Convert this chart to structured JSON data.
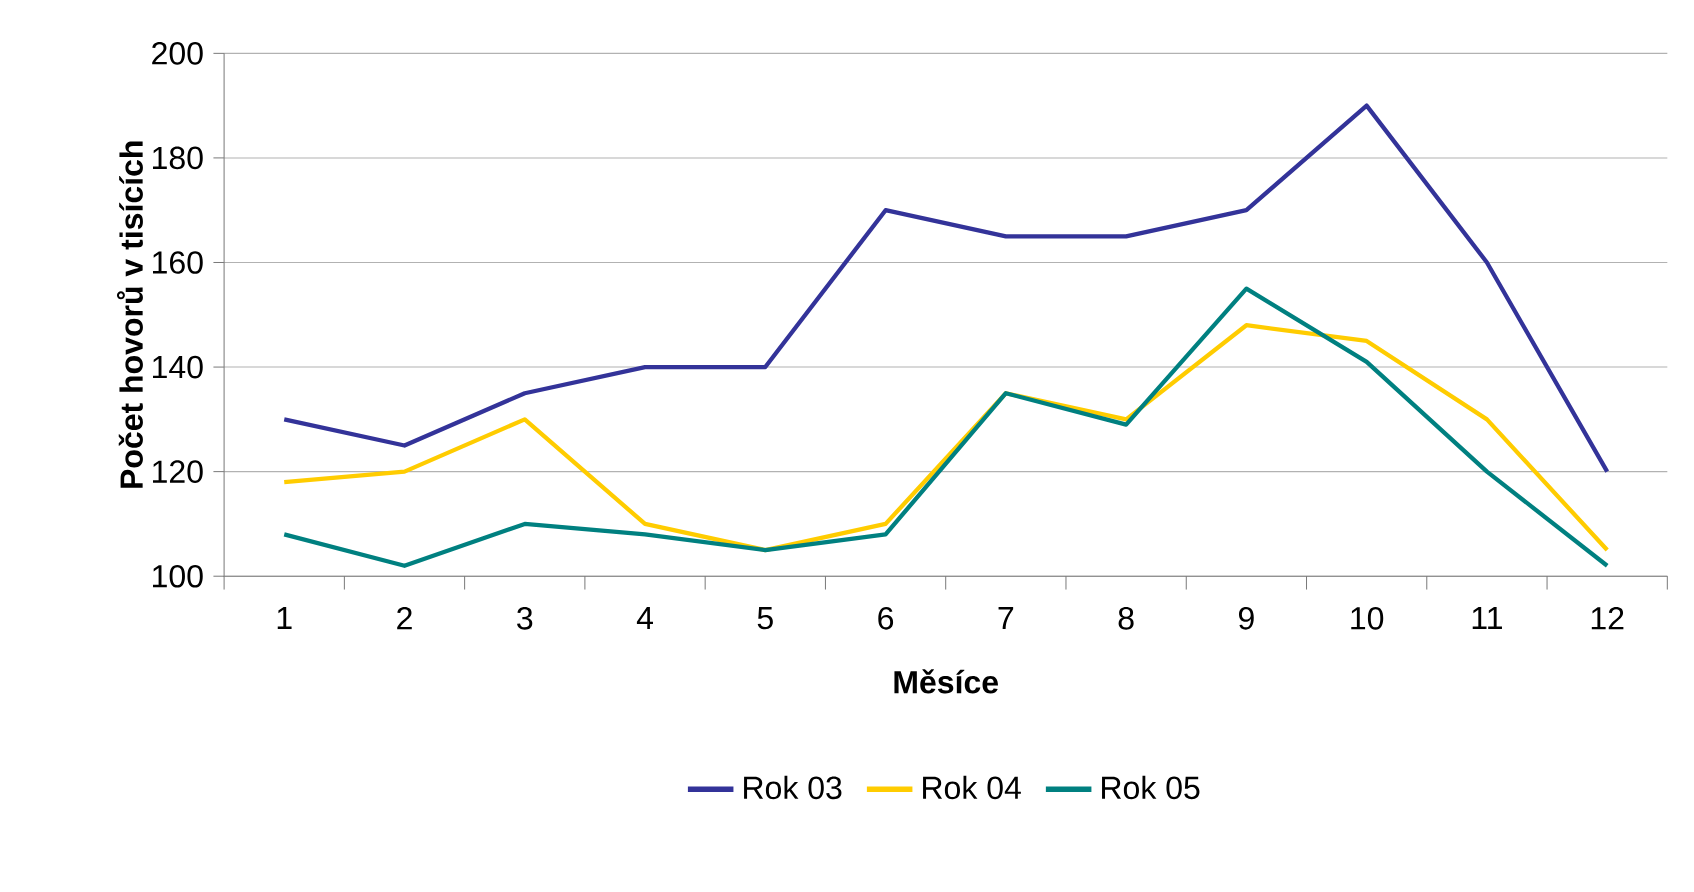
{
  "chart_data": {
    "type": "line",
    "xlabel": "Měsíce",
    "ylabel": "Počet hovorů v tisících",
    "categories": [
      "1",
      "2",
      "3",
      "4",
      "5",
      "6",
      "7",
      "8",
      "9",
      "10",
      "11",
      "12"
    ],
    "series": [
      {
        "name": "Rok 03",
        "color": "#333399",
        "values": [
          130,
          125,
          135,
          140,
          140,
          170,
          165,
          165,
          170,
          190,
          160,
          120
        ]
      },
      {
        "name": "Rok 04",
        "color": "#ffcc00",
        "values": [
          118,
          120,
          130,
          110,
          105,
          110,
          135,
          130,
          148,
          145,
          130,
          105
        ]
      },
      {
        "name": "Rok 05",
        "color": "#008080",
        "values": [
          108,
          102,
          110,
          108,
          105,
          108,
          135,
          129,
          155,
          141,
          120,
          102
        ]
      }
    ],
    "ylim": [
      100,
      200
    ],
    "yticks": [
      100,
      120,
      140,
      160,
      180,
      200
    ],
    "grid": "y",
    "legend": "bottom",
    "marker": "none",
    "line_style": "solid"
  }
}
